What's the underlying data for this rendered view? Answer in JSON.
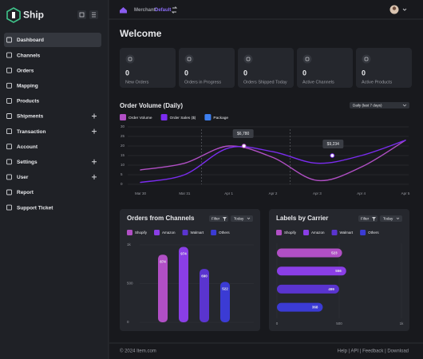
{
  "sidebar": {
    "brand": "Ship",
    "nav": [
      {
        "label": "Dashboard",
        "active": true
      },
      {
        "label": "Channels"
      },
      {
        "label": "Orders"
      },
      {
        "label": "Mapping"
      },
      {
        "label": "Products"
      },
      {
        "label": "Shipments",
        "expandable": true
      },
      {
        "label": "Transaction",
        "expandable": true
      },
      {
        "label": "Account"
      },
      {
        "label": "Settings",
        "expandable": true
      },
      {
        "label": "User",
        "expandable": true
      },
      {
        "label": "Report"
      },
      {
        "label": "Support Ticket"
      }
    ]
  },
  "topbar": {
    "merchant_label": "Merchant:",
    "merchant": "Default"
  },
  "welcome": "Welcome",
  "stats": [
    {
      "value": 0,
      "label": "New Orders"
    },
    {
      "value": 0,
      "label": "Orders in Progress"
    },
    {
      "value": 0,
      "label": "Orders Shipped Today"
    },
    {
      "value": 0,
      "label": "Active Channels"
    },
    {
      "value": 0,
      "label": "Active Products"
    }
  ],
  "chart_data": [
    {
      "type": "line",
      "title": "Order Volume (Daily)",
      "dropdown": "Daily (last 7 days)",
      "categories": [
        "Mar 30",
        "Mar 31",
        "Apr 1",
        "Apr 2",
        "Apr 3",
        "Apr 4",
        "Apr 5"
      ],
      "series": [
        {
          "name": "Order Volume",
          "color": "#b14fc5",
          "values": [
            7.5,
            11,
            20,
            14,
            2,
            9,
            23
          ]
        },
        {
          "name": "Order Sales ($)",
          "color": "#7b2cf0",
          "values": [
            1,
            5,
            19,
            17,
            11,
            15,
            23
          ]
        },
        {
          "name": "Package",
          "color": "#3d7ff0",
          "values": [
            null,
            null,
            null,
            null,
            null,
            null,
            null
          ]
        }
      ],
      "annotations": [
        "$6,780",
        "$9,234"
      ],
      "ylim": [
        0,
        30
      ],
      "yticks": [
        0,
        5,
        10,
        15,
        20,
        25,
        30
      ],
      "grid": true
    },
    {
      "type": "bar",
      "title": "Orders from Channels",
      "filter": "Filter",
      "period": "Today",
      "categories": [
        "Shopify",
        "Amazon",
        "Walmart",
        "Others"
      ],
      "colors": [
        "#b14fc5",
        "#8a3ee6",
        "#5a34cf",
        "#3b3bd4"
      ],
      "values": [
        874,
        974,
        690,
        522
      ],
      "ylim": [
        0,
        1000
      ],
      "yticks": [
        0,
        500,
        {
          "value": 1000,
          "label": "1k"
        }
      ],
      "grid": true
    },
    {
      "type": "barh",
      "title": "Labels by Carrier",
      "filter": "Filter",
      "period": "Today",
      "categories": [
        "Shopify",
        "Amazon",
        "Walmart",
        "Others"
      ],
      "colors": [
        "#b14fc5",
        "#8a3ee6",
        "#5a34cf",
        "#3b3bd4"
      ],
      "values": [
        523,
        556,
        499,
        368
      ],
      "xlim": [
        0,
        1000
      ],
      "xticks": [
        0,
        500,
        {
          "value": 1000,
          "label": "1k"
        }
      ],
      "grid": true
    }
  ],
  "footer": {
    "copyright": "© 2024 Item.com",
    "links": "Help | API | Feedback | Download"
  }
}
